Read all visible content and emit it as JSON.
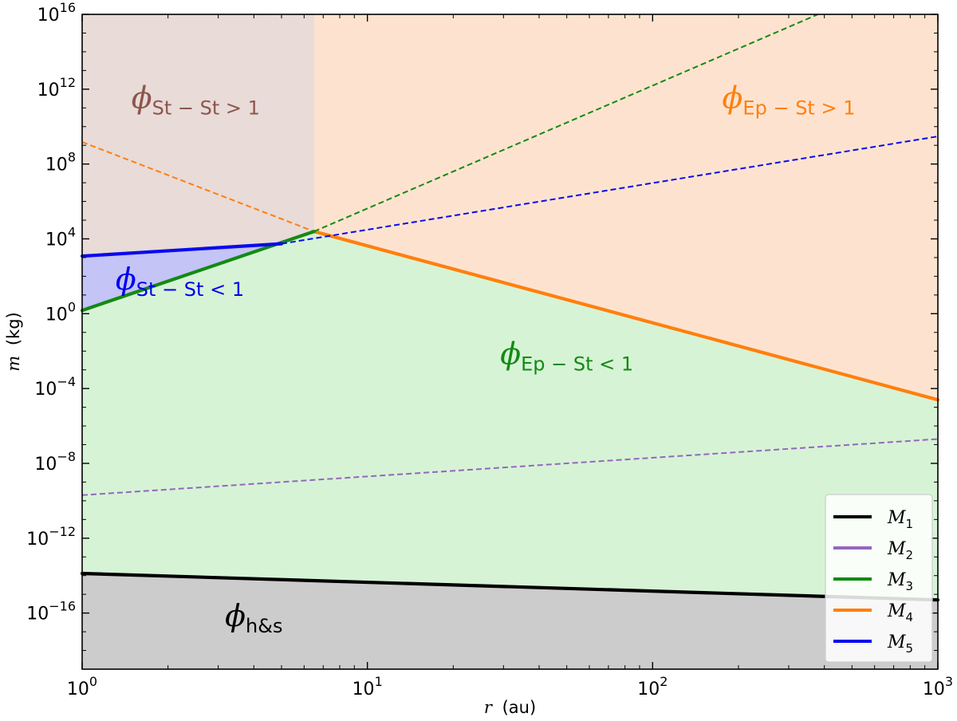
{
  "chart_data": {
    "type": "line",
    "xlabel_var": "r",
    "xlabel_unit": "(au)",
    "ylabel_var": "m",
    "ylabel_unit": "(kg)",
    "xscale": "log",
    "yscale": "log",
    "xlim": [
      1,
      1000
    ],
    "ylim": [
      1e-19,
      1e+16
    ],
    "x_ticks": [
      {
        "value": 1,
        "base": "10",
        "exp": "0"
      },
      {
        "value": 10,
        "base": "10",
        "exp": "1"
      },
      {
        "value": 100,
        "base": "10",
        "exp": "2"
      },
      {
        "value": 1000,
        "base": "10",
        "exp": "3"
      }
    ],
    "y_ticks": [
      {
        "value": 1e-16,
        "base": "10",
        "exp": "−16"
      },
      {
        "value": 1e-12,
        "base": "10",
        "exp": "−12"
      },
      {
        "value": 1e-08,
        "base": "10",
        "exp": "−8"
      },
      {
        "value": 0.0001,
        "base": "10",
        "exp": "−4"
      },
      {
        "value": 1,
        "base": "10",
        "exp": "0"
      },
      {
        "value": 10000.0,
        "base": "10",
        "exp": "4"
      },
      {
        "value": 100000000.0,
        "base": "10",
        "exp": "8"
      },
      {
        "value": 1000000000000.0,
        "base": "10",
        "exp": "12"
      },
      {
        "value": 1e+16,
        "base": "10",
        "exp": "16"
      }
    ],
    "series": [
      {
        "name": "M",
        "sub": "1",
        "color": "#000000",
        "style": "solid",
        "segments": [
          {
            "x": [
              1,
              1000
            ],
            "y": [
              1.3e-14,
              5e-16
            ],
            "style": "solid"
          }
        ]
      },
      {
        "name": "M",
        "sub": "2",
        "color": "#9467bd",
        "style": "dashed",
        "segments": [
          {
            "x": [
              1,
              1000
            ],
            "y": [
              2e-10,
              2e-07
            ],
            "style": "dashed"
          }
        ]
      },
      {
        "name": "M",
        "sub": "3",
        "color": "#138a13",
        "style": "solid",
        "segments": [
          {
            "x": [
              1,
              6.5
            ],
            "y": [
              1.5,
              25000
            ],
            "style": "solid"
          },
          {
            "x": [
              6.5,
              380
            ],
            "y": [
              25000,
              1e+16
            ],
            "style": "dashed"
          }
        ]
      },
      {
        "name": "M",
        "sub": "4",
        "color": "#ff7f0e",
        "style": "solid",
        "segments": [
          {
            "x": [
              1,
              6.5
            ],
            "y": [
              1500000000.0,
              25000
            ],
            "style": "dashed"
          },
          {
            "x": [
              6.5,
              1000
            ],
            "y": [
              25000,
              2.5e-05
            ],
            "style": "solid"
          }
        ]
      },
      {
        "name": "M",
        "sub": "5",
        "color": "#0a0aee",
        "style": "solid",
        "segments": [
          {
            "x": [
              1,
              5
            ],
            "y": [
              1200,
              5500
            ],
            "style": "solid"
          },
          {
            "x": [
              5,
              1000
            ],
            "y": [
              5500,
              3000000000.0
            ],
            "style": "dashed"
          }
        ]
      }
    ],
    "regions": [
      {
        "id": "h-and-s",
        "color": "#cccccc",
        "opacity": 1.0
      },
      {
        "id": "ep-st-lt-1",
        "color": "#d6f3d6",
        "opacity": 1.0
      },
      {
        "id": "ep-st-gt-1",
        "color": "#fde3cf",
        "opacity": 1.0
      },
      {
        "id": "st-st-gt-1",
        "color": "#e8dbd8",
        "opacity": 1.0
      },
      {
        "id": "st-st-lt-1",
        "color": "#c4c4f6",
        "opacity": 1.0
      }
    ],
    "region_labels": [
      {
        "id": "st-st-gt-1",
        "symbol": "ϕ",
        "sub": "St − St > 1",
        "color": "#8c564b",
        "x": 2.5,
        "y": 100000000000.0
      },
      {
        "id": "ep-st-gt-1",
        "symbol": "ϕ",
        "sub": "Ep − St > 1",
        "color": "#ff7f0e",
        "x": 300,
        "y": 100000000000.0
      },
      {
        "id": "st-st-lt-1",
        "symbol": "ϕ",
        "sub": "St − St < 1",
        "color": "#0000ee",
        "x": 2.2,
        "y": 20
      },
      {
        "id": "ep-st-lt-1",
        "symbol": "ϕ",
        "sub": "Ep − St < 1",
        "color": "#138a13",
        "x": 50,
        "y": 0.002
      },
      {
        "id": "h-and-s",
        "symbol": "ϕ",
        "sub": "h&s",
        "color": "#000000",
        "x": 4,
        "y": 2e-17
      }
    ],
    "legend": {
      "placement": "lower right"
    }
  }
}
